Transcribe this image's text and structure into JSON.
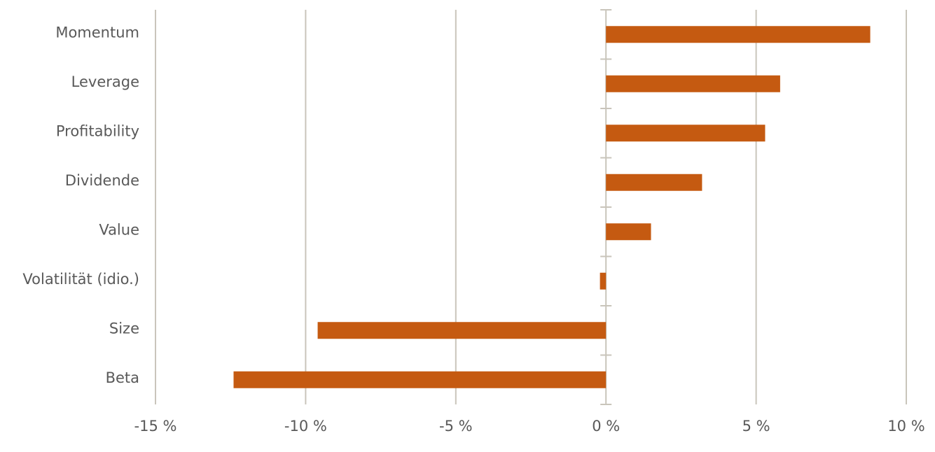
{
  "chart_data": {
    "type": "hbar",
    "categories": [
      "Momentum",
      "Leverage",
      "Profitability",
      "Dividende",
      "Value",
      "Volatilität (idio.)",
      "Size",
      "Beta"
    ],
    "values": [
      8.8,
      5.8,
      5.3,
      3.2,
      1.5,
      -0.2,
      -9.6,
      -12.4
    ],
    "color": "#c55a11",
    "xlim": [
      -15,
      10
    ],
    "xticks": [
      {
        "value": -15,
        "label": "-15 %"
      },
      {
        "value": -10,
        "label": "-10 %"
      },
      {
        "value": -5,
        "label": "-5 %"
      },
      {
        "value": 0,
        "label": "0 %"
      },
      {
        "value": 5,
        "label": "5 %"
      },
      {
        "value": 10,
        "label": "10 %"
      }
    ],
    "grid": true
  }
}
